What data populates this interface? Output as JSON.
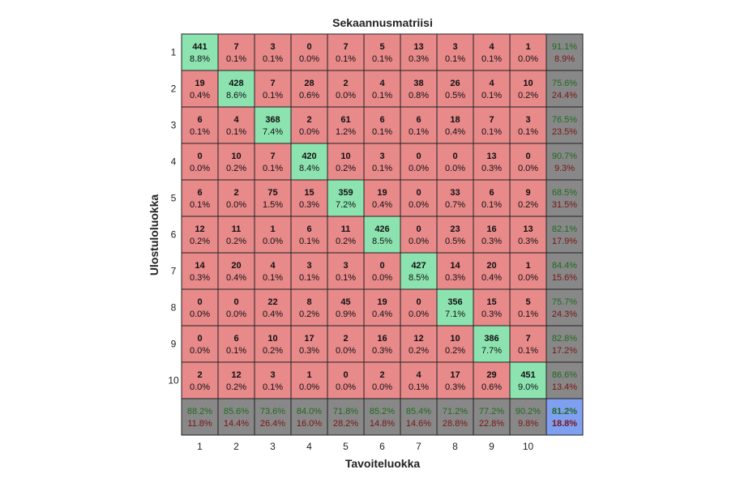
{
  "chart_data": {
    "type": "heatmap",
    "title": "Sekaannusmatriisi",
    "xlabel": "Tavoiteluokka",
    "ylabel": "Ulostuloluokka",
    "classes": [
      "1",
      "2",
      "3",
      "4",
      "5",
      "6",
      "7",
      "8",
      "9",
      "10"
    ],
    "matrix": [
      [
        441,
        7,
        3,
        0,
        7,
        5,
        13,
        3,
        4,
        1
      ],
      [
        19,
        428,
        7,
        28,
        2,
        4,
        38,
        26,
        4,
        10
      ],
      [
        6,
        4,
        368,
        2,
        61,
        6,
        6,
        18,
        7,
        3
      ],
      [
        0,
        10,
        7,
        420,
        10,
        3,
        0,
        0,
        13,
        0
      ],
      [
        6,
        2,
        75,
        15,
        359,
        19,
        0,
        33,
        6,
        9
      ],
      [
        12,
        11,
        1,
        6,
        11,
        426,
        0,
        23,
        16,
        13
      ],
      [
        14,
        20,
        4,
        3,
        3,
        0,
        427,
        14,
        20,
        1
      ],
      [
        0,
        0,
        22,
        8,
        45,
        19,
        0,
        356,
        15,
        5
      ],
      [
        0,
        6,
        10,
        17,
        2,
        16,
        12,
        10,
        386,
        7
      ],
      [
        2,
        12,
        3,
        1,
        0,
        2,
        4,
        17,
        29,
        451
      ]
    ],
    "percentages": [
      [
        "8.8%",
        "0.1%",
        "0.1%",
        "0.0%",
        "0.1%",
        "0.1%",
        "0.3%",
        "0.1%",
        "0.1%",
        "0.0%"
      ],
      [
        "0.4%",
        "8.6%",
        "0.1%",
        "0.6%",
        "0.0%",
        "0.1%",
        "0.8%",
        "0.5%",
        "0.1%",
        "0.2%"
      ],
      [
        "0.1%",
        "0.1%",
        "7.4%",
        "0.0%",
        "1.2%",
        "0.1%",
        "0.1%",
        "0.4%",
        "0.1%",
        "0.1%"
      ],
      [
        "0.0%",
        "0.2%",
        "0.1%",
        "8.4%",
        "0.2%",
        "0.1%",
        "0.0%",
        "0.0%",
        "0.3%",
        "0.0%"
      ],
      [
        "0.1%",
        "0.0%",
        "1.5%",
        "0.3%",
        "7.2%",
        "0.4%",
        "0.0%",
        "0.7%",
        "0.1%",
        "0.2%"
      ],
      [
        "0.2%",
        "0.2%",
        "0.0%",
        "0.1%",
        "0.2%",
        "8.5%",
        "0.0%",
        "0.5%",
        "0.3%",
        "0.3%"
      ],
      [
        "0.3%",
        "0.4%",
        "0.1%",
        "0.1%",
        "0.1%",
        "0.0%",
        "8.5%",
        "0.3%",
        "0.4%",
        "0.0%"
      ],
      [
        "0.0%",
        "0.0%",
        "0.4%",
        "0.2%",
        "0.9%",
        "0.4%",
        "0.0%",
        "7.1%",
        "0.3%",
        "0.1%"
      ],
      [
        "0.0%",
        "0.1%",
        "0.2%",
        "0.3%",
        "0.0%",
        "0.3%",
        "0.2%",
        "0.2%",
        "7.7%",
        "0.1%"
      ],
      [
        "0.0%",
        "0.2%",
        "0.1%",
        "0.0%",
        "0.0%",
        "0.0%",
        "0.1%",
        "0.3%",
        "0.6%",
        "9.0%"
      ]
    ],
    "row_summary": [
      [
        "91.1%",
        "8.9%"
      ],
      [
        "75.6%",
        "24.4%"
      ],
      [
        "76.5%",
        "23.5%"
      ],
      [
        "90.7%",
        "9.3%"
      ],
      [
        "68.5%",
        "31.5%"
      ],
      [
        "82.1%",
        "17.9%"
      ],
      [
        "84.4%",
        "15.6%"
      ],
      [
        "75.7%",
        "24.3%"
      ],
      [
        "82.8%",
        "17.2%"
      ],
      [
        "86.6%",
        "13.4%"
      ]
    ],
    "col_summary": [
      [
        "88.2%",
        "11.8%"
      ],
      [
        "85.6%",
        "14.4%"
      ],
      [
        "73.6%",
        "26.4%"
      ],
      [
        "84.0%",
        "16.0%"
      ],
      [
        "71.8%",
        "28.2%"
      ],
      [
        "85.2%",
        "14.8%"
      ],
      [
        "85.4%",
        "14.6%"
      ],
      [
        "71.2%",
        "28.8%"
      ],
      [
        "77.2%",
        "22.8%"
      ],
      [
        "90.2%",
        "9.8%"
      ]
    ],
    "overall": [
      "81.2%",
      "18.8%"
    ],
    "colors": {
      "diagonal": "#8de3b0",
      "offdiagonal": "#e8898a",
      "summary": "#888888",
      "overall": "#7f9ff0",
      "correct_text": "#1e6b1e",
      "error_text": "#7a1414",
      "cell_text": "#111111",
      "grid": "#222222"
    }
  }
}
